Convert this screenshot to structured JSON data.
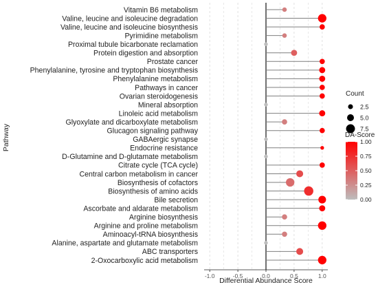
{
  "chart_data": {
    "type": "lollipop",
    "xlabel": "Differential Abundance Score",
    "ylabel": "Pathway",
    "xlim": [
      -1.1,
      1.1
    ],
    "x_ticks": [
      -1.0,
      -0.5,
      0.0,
      0.5,
      1.0
    ],
    "x_tick_labels": [
      "-1.0",
      "-0.5",
      "0.0",
      "0.5",
      "1.0"
    ],
    "grid": "vertical dashed",
    "pathways": [
      {
        "name": "Vitamin B6 metabolism",
        "score": 0.33,
        "count": 2
      },
      {
        "name": "Valine, leucine and isoleucine degradation",
        "score": 1.0,
        "count": 7
      },
      {
        "name": "Valine, leucine and isoleucine biosynthesis",
        "score": 1.0,
        "count": 3
      },
      {
        "name": "Pyrimidine metabolism",
        "score": 0.33,
        "count": 2
      },
      {
        "name": "Proximal tubule bicarbonate reclamation",
        "score": 0.0,
        "count": 1
      },
      {
        "name": "Protein digestion and absorption",
        "score": 0.5,
        "count": 4
      },
      {
        "name": "Prostate cancer",
        "score": 1.0,
        "count": 3
      },
      {
        "name": "Phenylalanine, tyrosine and tryptophan biosynthesis",
        "score": 1.0,
        "count": 4
      },
      {
        "name": "Phenylalanine metabolism",
        "score": 1.0,
        "count": 4
      },
      {
        "name": "Pathways in cancer",
        "score": 1.0,
        "count": 3
      },
      {
        "name": "Ovarian steroidogenesis",
        "score": 1.0,
        "count": 3
      },
      {
        "name": "Mineral absorption",
        "score": 0.0,
        "count": 1
      },
      {
        "name": "Linoleic acid metabolism",
        "score": 1.0,
        "count": 4
      },
      {
        "name": "Glyoxylate and dicarboxylate metabolism",
        "score": 0.33,
        "count": 3
      },
      {
        "name": "Glucagon signaling pathway",
        "score": 1.0,
        "count": 3
      },
      {
        "name": "GABAergic synapse",
        "score": 0.0,
        "count": 1
      },
      {
        "name": "Endocrine resistance",
        "score": 1.0,
        "count": 1
      },
      {
        "name": "D-Glutamine and D-glutamate metabolism",
        "score": 0.0,
        "count": 1
      },
      {
        "name": "Citrate cycle (TCA cycle)",
        "score": 1.0,
        "count": 3
      },
      {
        "name": "Central carbon metabolism in cancer",
        "score": 0.6,
        "count": 5
      },
      {
        "name": "Biosynthesis of cofactors",
        "score": 0.43,
        "count": 7
      },
      {
        "name": "Biosynthesis of amino acids",
        "score": 0.76,
        "count": 8
      },
      {
        "name": "Bile secretion",
        "score": 1.0,
        "count": 6
      },
      {
        "name": "Ascorbate and aldarate metabolism",
        "score": 1.0,
        "count": 4
      },
      {
        "name": "Arginine biosynthesis",
        "score": 0.33,
        "count": 3
      },
      {
        "name": "Arginine and proline metabolism",
        "score": 1.0,
        "count": 7
      },
      {
        "name": "Aminoacyl-tRNA biosynthesis",
        "score": 0.33,
        "count": 3
      },
      {
        "name": "Alanine, aspartate and glutamate metabolism",
        "score": 0.0,
        "count": 1
      },
      {
        "name": "ABC transporters",
        "score": 0.6,
        "count": 5
      },
      {
        "name": "2-Oxocarboxylic acid metabolism",
        "score": 1.0,
        "count": 7
      }
    ],
    "legend_count": {
      "title": "Count",
      "entries": [
        {
          "label": "2.5",
          "value": 2.5
        },
        {
          "label": "5.0",
          "value": 5.0
        },
        {
          "label": "7.5",
          "value": 7.5
        }
      ],
      "placement": "right"
    },
    "legend_color": {
      "title": "DA-Score",
      "ticks": [
        {
          "label": "1.00",
          "value": 1.0
        },
        {
          "label": "0.75",
          "value": 0.75
        },
        {
          "label": "0.50",
          "value": 0.5
        },
        {
          "label": "0.25",
          "value": 0.25
        },
        {
          "label": "0.00",
          "value": 0.0
        }
      ],
      "color_low": "#bdbdbd",
      "color_high": "#ff0000",
      "placement": "right"
    },
    "colors": {
      "stem": "#7f7f7f",
      "zero_line": "#222222",
      "grid": "#d9d9d9",
      "axis": "#222222"
    }
  }
}
